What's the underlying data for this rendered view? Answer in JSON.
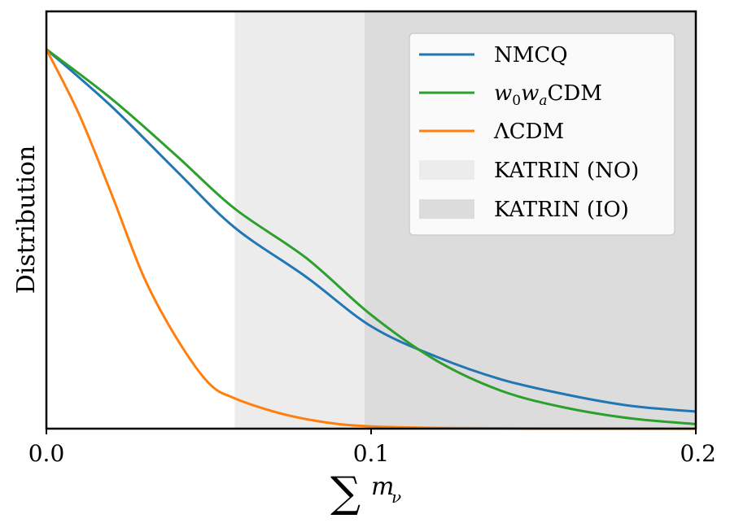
{
  "chart_data": {
    "type": "line",
    "title": "",
    "xlabel": "∑m_ν",
    "ylabel": "Distribution",
    "xlim": [
      0.0,
      0.2
    ],
    "ylim": [
      0.0,
      1.1
    ],
    "xticks": [
      0.0,
      0.1,
      0.2
    ],
    "xtick_labels": [
      "0.0",
      "0.1",
      "0.2"
    ],
    "grid": false,
    "legend_position": "top-right",
    "shaded_regions": [
      {
        "name": "KATRIN (NO)",
        "x_start": 0.058,
        "x_end": 0.098,
        "color": "#ececec"
      },
      {
        "name": "KATRIN (IO)",
        "x_start": 0.098,
        "x_end": 0.2,
        "color": "#dcdcdc"
      }
    ],
    "series": [
      {
        "name": "NMCQ",
        "color": "#1f77b4",
        "x": [
          0.0,
          0.02,
          0.04,
          0.058,
          0.08,
          0.1,
          0.12,
          0.14,
          0.16,
          0.18,
          0.2
        ],
        "values": [
          1.0,
          0.85,
          0.68,
          0.53,
          0.4,
          0.27,
          0.19,
          0.13,
          0.09,
          0.06,
          0.045
        ]
      },
      {
        "name": "w_0w_aCDM",
        "color": "#2ca02c",
        "x": [
          0.0,
          0.02,
          0.04,
          0.058,
          0.08,
          0.1,
          0.12,
          0.14,
          0.16,
          0.18,
          0.2
        ],
        "values": [
          1.0,
          0.87,
          0.72,
          0.58,
          0.45,
          0.3,
          0.18,
          0.1,
          0.055,
          0.027,
          0.012
        ]
      },
      {
        "name": "ΛCDM",
        "color": "#ff7f0e",
        "x": [
          0.0,
          0.01,
          0.02,
          0.03,
          0.04,
          0.05,
          0.058,
          0.07,
          0.08,
          0.09,
          0.1,
          0.12,
          0.15,
          0.2
        ],
        "values": [
          1.0,
          0.83,
          0.62,
          0.4,
          0.24,
          0.12,
          0.08,
          0.045,
          0.025,
          0.012,
          0.006,
          0.002,
          0.0005,
          0.0
        ]
      }
    ],
    "legend": [
      {
        "label": "NMCQ",
        "kind": "line",
        "color": "#1f77b4"
      },
      {
        "label": "w_0w_aCDM",
        "kind": "line",
        "color": "#2ca02c"
      },
      {
        "label": "ΛCDM",
        "kind": "line",
        "color": "#ff7f0e"
      },
      {
        "label": "KATRIN (NO)",
        "kind": "patch",
        "color": "#ececec"
      },
      {
        "label": "KATRIN (IO)",
        "kind": "patch",
        "color": "#dcdcdc"
      }
    ]
  }
}
